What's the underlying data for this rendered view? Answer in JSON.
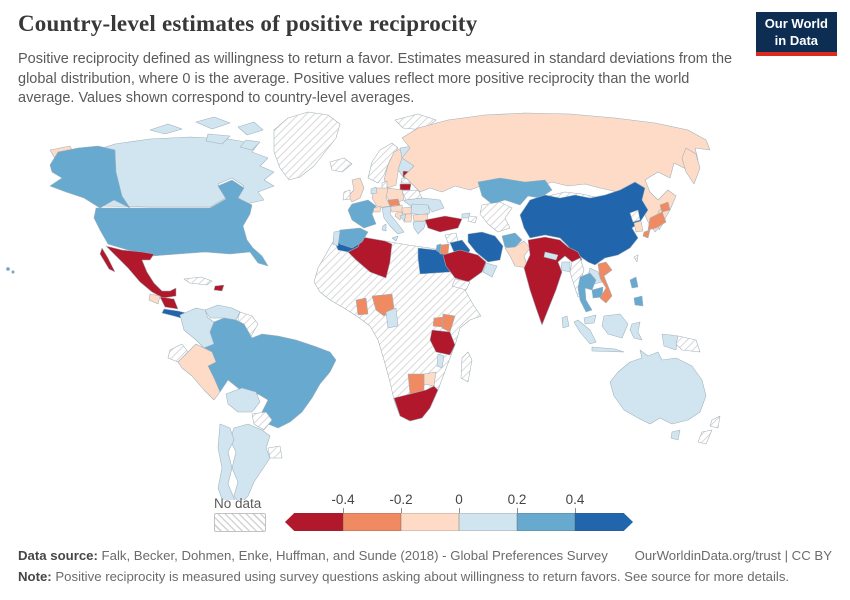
{
  "header": {
    "title": "Country-level estimates of positive reciprocity",
    "subtitle": "Positive reciprocity defined as willingness to return a favor. Estimates measured in standard deviations from the global distribution, where 0 is the average. Positive values reflect more positive reciprocity than the world average. Values shown correspond to country-level averages."
  },
  "logo": {
    "line1": "Our World",
    "line2": "in Data",
    "bg_color": "#0d2d52",
    "accent_color": "#dc2a1f"
  },
  "legend": {
    "no_data_label": "No data"
  },
  "chart_data": {
    "type": "choropleth",
    "metric": "Positive reciprocity (standard deviations from global average)",
    "legend_ticks": [
      "-0.4",
      "-0.2",
      "0",
      "0.2",
      "0.4"
    ],
    "bins": [
      {
        "id": "neg3",
        "range": "< -0.4",
        "color": "#b2182b"
      },
      {
        "id": "neg2",
        "range": "-0.4 to -0.2",
        "color": "#ef8a62"
      },
      {
        "id": "neg1",
        "range": "-0.2 to 0",
        "color": "#fddbc7"
      },
      {
        "id": "pos1",
        "range": "0 to 0.2",
        "color": "#d1e5f0"
      },
      {
        "id": "pos2",
        "range": "0.2 to 0.4",
        "color": "#67a9cf"
      },
      {
        "id": "pos3",
        "range": "> 0.4",
        "color": "#2166ac"
      }
    ],
    "entities": [
      {
        "name": "Mexico",
        "bin": "neg3"
      },
      {
        "name": "Nicaragua",
        "bin": "neg3"
      },
      {
        "name": "Haiti",
        "bin": "neg3"
      },
      {
        "name": "Estonia",
        "bin": "neg3"
      },
      {
        "name": "Lithuania",
        "bin": "neg3"
      },
      {
        "name": "Turkey",
        "bin": "neg3"
      },
      {
        "name": "Algeria",
        "bin": "neg3"
      },
      {
        "name": "Saudi Arabia",
        "bin": "neg3"
      },
      {
        "name": "Tanzania",
        "bin": "neg3"
      },
      {
        "name": "South Africa",
        "bin": "neg3"
      },
      {
        "name": "India",
        "bin": "neg3"
      },
      {
        "name": "Czechia",
        "bin": "neg2"
      },
      {
        "name": "Jordan",
        "bin": "neg2"
      },
      {
        "name": "Ghana",
        "bin": "neg2"
      },
      {
        "name": "Nigeria",
        "bin": "neg2"
      },
      {
        "name": "Uganda",
        "bin": "neg2"
      },
      {
        "name": "Kenya",
        "bin": "neg2"
      },
      {
        "name": "Botswana",
        "bin": "neg2"
      },
      {
        "name": "Japan",
        "bin": "neg2"
      },
      {
        "name": "Vietnam",
        "bin": "neg2"
      },
      {
        "name": "Russia",
        "bin": "neg1"
      },
      {
        "name": "Sweden",
        "bin": "neg1"
      },
      {
        "name": "United Kingdom",
        "bin": "neg1"
      },
      {
        "name": "Germany",
        "bin": "neg1"
      },
      {
        "name": "Poland",
        "bin": "neg1"
      },
      {
        "name": "Austria",
        "bin": "neg1"
      },
      {
        "name": "Hungary",
        "bin": "neg1"
      },
      {
        "name": "Switzerland",
        "bin": "neg1"
      },
      {
        "name": "Croatia",
        "bin": "neg1"
      },
      {
        "name": "Serbia",
        "bin": "neg1"
      },
      {
        "name": "Bulgaria",
        "bin": "neg1"
      },
      {
        "name": "South Korea",
        "bin": "neg1"
      },
      {
        "name": "Pakistan",
        "bin": "neg1"
      },
      {
        "name": "Guatemala",
        "bin": "neg1"
      },
      {
        "name": "Peru",
        "bin": "neg1"
      },
      {
        "name": "Zimbabwe",
        "bin": "neg1"
      },
      {
        "name": "Canada",
        "bin": "pos1"
      },
      {
        "name": "Colombia",
        "bin": "pos1"
      },
      {
        "name": "Venezuela",
        "bin": "pos1"
      },
      {
        "name": "Bolivia",
        "bin": "pos1"
      },
      {
        "name": "Chile",
        "bin": "pos1"
      },
      {
        "name": "Argentina",
        "bin": "pos1"
      },
      {
        "name": "Finland",
        "bin": "pos1"
      },
      {
        "name": "Netherlands",
        "bin": "pos1"
      },
      {
        "name": "Portugal",
        "bin": "pos1"
      },
      {
        "name": "Italy",
        "bin": "pos1"
      },
      {
        "name": "Romania",
        "bin": "pos1"
      },
      {
        "name": "Greece",
        "bin": "pos1"
      },
      {
        "name": "Ukraine",
        "bin": "pos1"
      },
      {
        "name": "Bosnia and Herzegovina",
        "bin": "pos1"
      },
      {
        "name": "Georgia",
        "bin": "pos1"
      },
      {
        "name": "United Arab Emirates",
        "bin": "pos1"
      },
      {
        "name": "Nepal",
        "bin": "pos1"
      },
      {
        "name": "Bangladesh",
        "bin": "pos1"
      },
      {
        "name": "Sri Lanka",
        "bin": "pos1"
      },
      {
        "name": "Laos",
        "bin": "pos1"
      },
      {
        "name": "Cameroon",
        "bin": "pos1"
      },
      {
        "name": "Malawi",
        "bin": "pos1"
      },
      {
        "name": "Indonesia",
        "bin": "pos1"
      },
      {
        "name": "Malaysia",
        "bin": "pos1"
      },
      {
        "name": "Australia",
        "bin": "pos1"
      },
      {
        "name": "United States",
        "bin": "pos2"
      },
      {
        "name": "Brazil",
        "bin": "pos2"
      },
      {
        "name": "France",
        "bin": "pos2"
      },
      {
        "name": "Spain",
        "bin": "pos2"
      },
      {
        "name": "Kazakhstan",
        "bin": "pos2"
      },
      {
        "name": "Afghanistan",
        "bin": "pos2"
      },
      {
        "name": "Thailand",
        "bin": "pos2"
      },
      {
        "name": "Cambodia",
        "bin": "pos2"
      },
      {
        "name": "Philippines",
        "bin": "pos2"
      },
      {
        "name": "Israel",
        "bin": "pos2"
      },
      {
        "name": "Costa Rica",
        "bin": "pos3"
      },
      {
        "name": "Morocco",
        "bin": "pos3"
      },
      {
        "name": "Egypt",
        "bin": "pos3"
      },
      {
        "name": "Iran",
        "bin": "pos3"
      },
      {
        "name": "Iraq",
        "bin": "pos3"
      },
      {
        "name": "China",
        "bin": "pos3"
      }
    ],
    "no_data": [
      "Greenland",
      "Iceland",
      "Ireland",
      "Norway",
      "Denmark",
      "Latvia",
      "Belarus",
      "Svalbard",
      "Cuba",
      "Guyana",
      "Suriname",
      "Ecuador",
      "Paraguay",
      "Uruguay",
      "Libya",
      "Sudan",
      "Mali",
      "Niger",
      "Chad",
      "Ethiopia",
      "Somalia",
      "DR Congo",
      "Angola",
      "Zambia",
      "Mozambique",
      "Namibia",
      "Madagascar",
      "Syria",
      "Yemen",
      "Azerbaijan",
      "Turkmenistan",
      "Uzbekistan",
      "Mongolia",
      "Myanmar",
      "North Korea",
      "Taiwan",
      "Papua New Guinea",
      "New Zealand"
    ]
  },
  "footer": {
    "source_label": "Data source:",
    "source_text": " Falk, Becker, Dohmen, Enke, Huffman, and Sunde (2018) - Global Preferences Survey",
    "link": "OurWorldinData.org/trust | CC BY",
    "note_label": "Note:",
    "note_text": " Positive reciprocity is measured using survey questions asking about willingness to return favors. See source for more details."
  }
}
